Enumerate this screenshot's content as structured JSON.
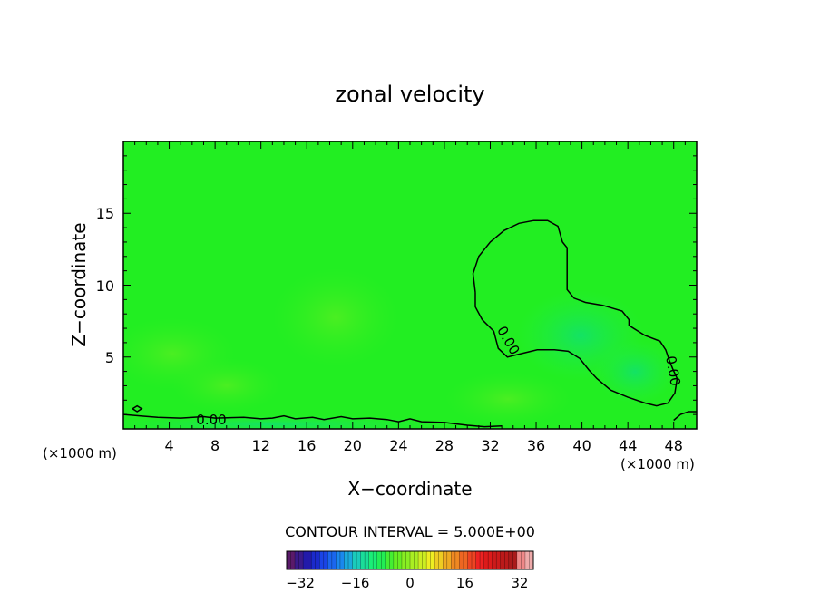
{
  "chart_data": {
    "type": "contour",
    "title": "zonal velocity",
    "xlabel": "X−coordinate",
    "ylabel": "Z−coordinate",
    "x_unit_left": "(×1000 m)",
    "x_unit_right": "(×1000 m)",
    "xlim": [
      0,
      50
    ],
    "ylim": [
      0,
      20
    ],
    "x_ticks": [
      4,
      8,
      12,
      16,
      20,
      24,
      28,
      32,
      36,
      40,
      44,
      48
    ],
    "x_tick_labels": [
      "4",
      "8",
      "12",
      "16",
      "20",
      "24",
      "28",
      "32",
      "36",
      "40",
      "44",
      "48"
    ],
    "y_ticks": [
      5,
      10,
      15
    ],
    "y_tick_labels": [
      "5",
      "10",
      "15"
    ],
    "contour_interval_text": "CONTOUR INTERVAL = 5.000E+00",
    "contour_labels": [
      "0.00",
      "0.00",
      "0.00"
    ],
    "background_color": "#22ee22",
    "field_colors": {
      "slightly_positive": "#44ee22",
      "slightly_negative": "#22ee44",
      "negative": "#11e66a"
    },
    "contours": [
      {
        "level": 0,
        "name": "zero-contour-main",
        "points": [
          [
            30.7,
            9.5
          ],
          [
            30.5,
            10.8
          ],
          [
            31.0,
            12.0
          ],
          [
            32.0,
            13.0
          ],
          [
            33.2,
            13.8
          ],
          [
            34.5,
            14.3
          ],
          [
            35.8,
            14.5
          ],
          [
            37.0,
            14.5
          ],
          [
            37.9,
            14.1
          ],
          [
            38.3,
            13.0
          ],
          [
            38.7,
            12.6
          ],
          [
            38.7,
            11.0
          ],
          [
            38.7,
            9.7
          ],
          [
            39.3,
            9.1
          ],
          [
            40.3,
            8.8
          ],
          [
            41.8,
            8.6
          ],
          [
            43.5,
            8.2
          ],
          [
            44.1,
            7.6
          ],
          [
            44.1,
            7.2
          ],
          [
            45.5,
            6.5
          ],
          [
            46.8,
            6.1
          ],
          [
            47.3,
            5.5
          ],
          [
            47.6,
            4.8
          ],
          [
            47.9,
            4.2
          ],
          [
            48.3,
            3.5
          ],
          [
            48.1,
            2.5
          ],
          [
            47.5,
            1.8
          ],
          [
            46.5,
            1.6
          ],
          [
            45.5,
            1.8
          ],
          [
            44.0,
            2.2
          ],
          [
            42.5,
            2.7
          ],
          [
            41.3,
            3.5
          ],
          [
            40.6,
            4.1
          ],
          [
            39.8,
            4.9
          ],
          [
            38.8,
            5.4
          ],
          [
            37.6,
            5.5
          ],
          [
            36.1,
            5.5
          ],
          [
            34.5,
            5.2
          ],
          [
            33.5,
            5.0
          ],
          [
            32.7,
            5.6
          ],
          [
            32.3,
            6.8
          ],
          [
            31.3,
            7.6
          ],
          [
            30.7,
            8.5
          ],
          [
            30.7,
            9.5
          ]
        ]
      },
      {
        "level": 0,
        "name": "zero-contour-surface",
        "points": [
          [
            0,
            1.0
          ],
          [
            1.5,
            0.9
          ],
          [
            3.0,
            0.8
          ],
          [
            5.0,
            0.75
          ],
          [
            7.0,
            0.85
          ],
          [
            8.0,
            0.75
          ],
          [
            10.5,
            0.8
          ],
          [
            12.0,
            0.7
          ],
          [
            13.0,
            0.75
          ],
          [
            14.0,
            0.9
          ],
          [
            15.0,
            0.7
          ],
          [
            16.5,
            0.8
          ],
          [
            17.5,
            0.65
          ],
          [
            19.0,
            0.85
          ],
          [
            20.0,
            0.7
          ],
          [
            21.5,
            0.75
          ],
          [
            23.0,
            0.65
          ],
          [
            24.0,
            0.5
          ],
          [
            25.0,
            0.7
          ],
          [
            26.0,
            0.5
          ],
          [
            28.0,
            0.45
          ],
          [
            29.0,
            0.35
          ],
          [
            30.0,
            0.25
          ],
          [
            31.5,
            0.15
          ],
          [
            33.0,
            0.2
          ]
        ]
      },
      {
        "level": 0,
        "name": "zero-contour-right-edge",
        "points": [
          [
            48.0,
            0.6
          ],
          [
            48.6,
            1.0
          ],
          [
            49.3,
            1.2
          ],
          [
            50.0,
            1.2
          ]
        ]
      },
      {
        "level": 0,
        "name": "zero-contour-small-loop",
        "points": [
          [
            0.8,
            1.4
          ],
          [
            1.2,
            1.6
          ],
          [
            1.6,
            1.4
          ],
          [
            1.2,
            1.2
          ],
          [
            0.8,
            1.4
          ]
        ]
      }
    ],
    "colorbar": {
      "range": [
        -36,
        36
      ],
      "ticks": [
        -32,
        -16,
        0,
        16,
        32
      ],
      "tick_labels": [
        "−32",
        "−16",
        "0",
        "16",
        "32"
      ],
      "segment_colors": [
        "#5a1a6a",
        "#3a1a8a",
        "#221aaa",
        "#1a2acc",
        "#1a44e6",
        "#1a66ee",
        "#1a88ee",
        "#1aaadd",
        "#1accbb",
        "#1add99",
        "#1aee77",
        "#22ee55",
        "#44ee33",
        "#66ee22",
        "#88ee22",
        "#aaee22",
        "#ccee22",
        "#eeee22",
        "#eecc22",
        "#eeaa22",
        "#ee8822",
        "#ee6622",
        "#ee4422",
        "#ee2222",
        "#dd1a1a",
        "#cc1a1a",
        "#bb1a1a",
        "#aa1a1a",
        "#ee8888",
        "#eeaaaa"
      ]
    }
  }
}
